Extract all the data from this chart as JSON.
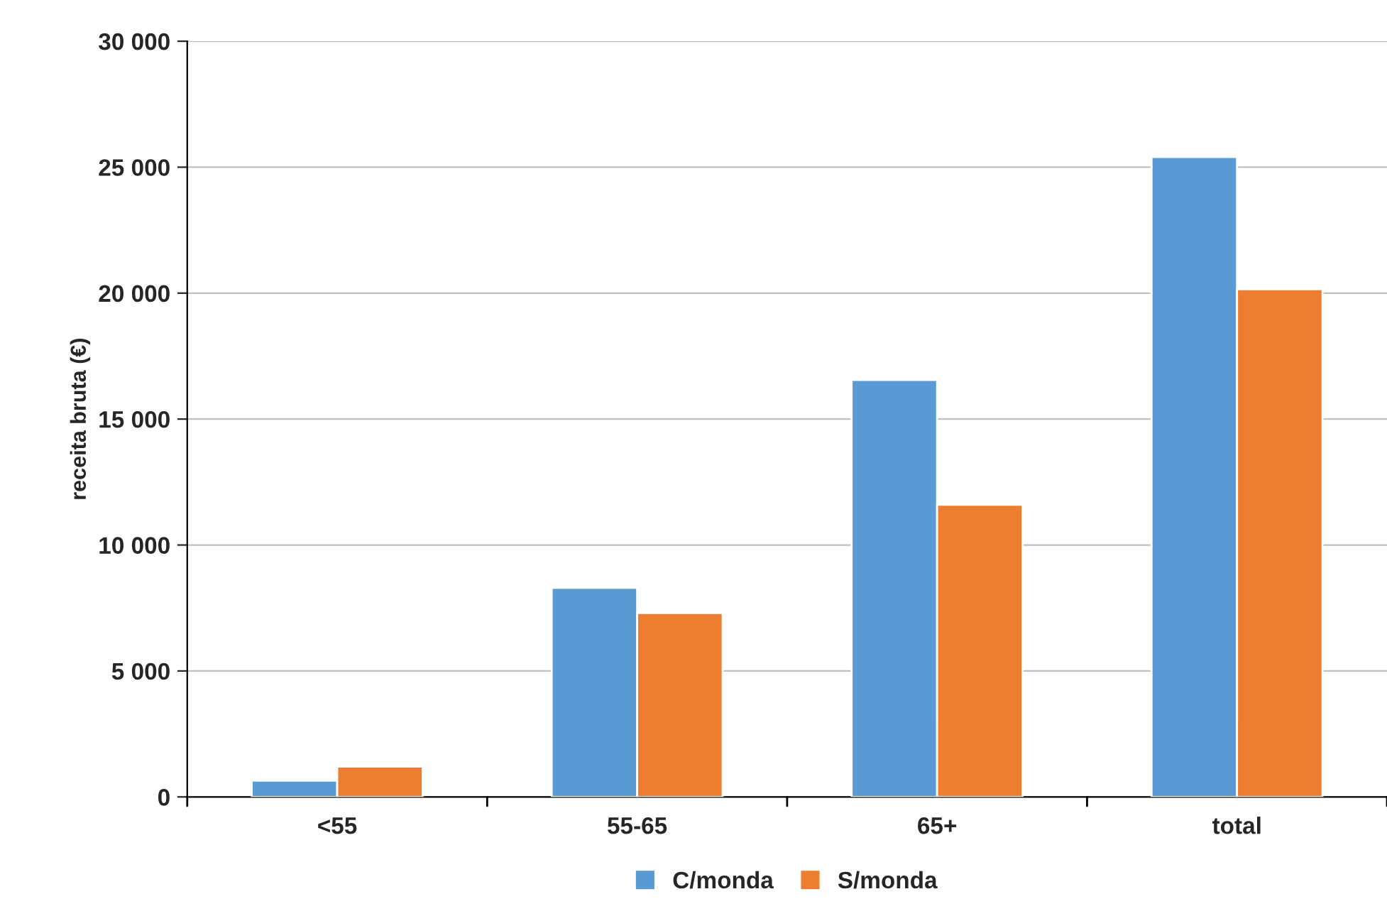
{
  "chart_data": {
    "type": "bar",
    "ylabel": "receita bruta (€)",
    "categories": [
      "<55",
      "55-65",
      "65+",
      "total"
    ],
    "series": [
      {
        "name": "C/monda",
        "color": "#5b9bd5",
        "values": [
          650,
          8300,
          16550,
          25400
        ]
      },
      {
        "name": "S/monda",
        "color": "#ed7d31",
        "values": [
          1200,
          7300,
          11600,
          20150
        ]
      }
    ],
    "ylim": [
      0,
      30000
    ],
    "yticks": [
      {
        "value": 0,
        "label": "0"
      },
      {
        "value": 5000,
        "label": "5 000"
      },
      {
        "value": 10000,
        "label": "10 000"
      },
      {
        "value": 15000,
        "label": "15 000"
      },
      {
        "value": 20000,
        "label": "20 000"
      },
      {
        "value": 25000,
        "label": "25 000"
      },
      {
        "value": 30000,
        "label": "30 000"
      }
    ],
    "grid": "y",
    "legend": "bottom"
  }
}
